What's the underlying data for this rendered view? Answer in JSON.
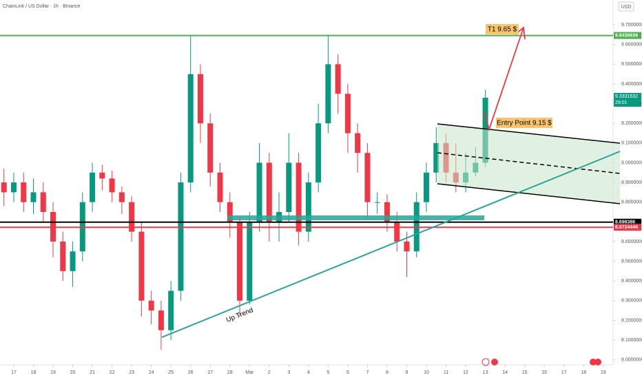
{
  "chart_data": {
    "type": "candlestick",
    "title": "ChainLink / US Dollar · 1h · Binance",
    "currency": "USD",
    "up_color": "#089981",
    "down_color": "#f23645",
    "x": [
      -0.5,
      0,
      0.5,
      1,
      1.5,
      2,
      2.5,
      3,
      3.5,
      4,
      4.5,
      5,
      5.5,
      6,
      6.5,
      7,
      7.5,
      8,
      8.5,
      9,
      9.5,
      10,
      10.5,
      11,
      11.5,
      12,
      12.5,
      13,
      13.5,
      14,
      14.5,
      15,
      15.5,
      16,
      16.5,
      17,
      17.5,
      18,
      18.5,
      19,
      19.5,
      20,
      20.5,
      21,
      21.5,
      22,
      22.5,
      23,
      23.5,
      24
    ],
    "open": [
      8.9,
      8.85,
      8.9,
      8.8,
      8.85,
      8.75,
      8.6,
      8.45,
      8.55,
      8.8,
      8.95,
      8.92,
      8.85,
      8.8,
      8.65,
      8.3,
      8.25,
      8.15,
      8.35,
      8.9,
      9.45,
      9.2,
      8.95,
      8.8,
      8.7,
      8.3,
      8.7,
      9.0,
      8.7,
      8.75,
      9.0,
      8.65,
      8.9,
      9.2,
      9.5,
      9.35,
      9.15,
      9.05,
      8.8,
      8.8,
      8.7,
      8.6,
      8.55,
      8.8,
      8.95,
      9.1,
      8.95,
      8.9,
      8.95,
      9.0
    ],
    "high": [
      8.97,
      8.95,
      8.95,
      8.92,
      8.9,
      8.8,
      8.65,
      8.6,
      8.85,
      9.0,
      8.99,
      8.96,
      8.88,
      8.83,
      8.7,
      8.35,
      8.3,
      8.4,
      8.95,
      9.65,
      9.5,
      9.25,
      9.0,
      8.85,
      8.72,
      8.75,
      9.1,
      9.05,
      8.85,
      9.15,
      9.05,
      8.95,
      9.3,
      9.65,
      9.55,
      9.4,
      9.2,
      9.1,
      8.85,
      8.84,
      8.75,
      8.65,
      8.85,
      9.0,
      9.18,
      9.15,
      9.1,
      9.05,
      9.08,
      9.37
    ],
    "low": [
      8.78,
      8.8,
      8.75,
      8.74,
      8.7,
      8.52,
      8.4,
      8.37,
      8.5,
      8.75,
      8.86,
      8.8,
      8.74,
      8.6,
      8.22,
      8.18,
      8.05,
      8.1,
      8.3,
      8.85,
      9.1,
      8.88,
      8.75,
      8.62,
      8.22,
      8.28,
      8.65,
      8.6,
      8.6,
      8.7,
      8.58,
      8.6,
      8.85,
      9.15,
      9.25,
      9.05,
      8.95,
      8.72,
      8.74,
      8.65,
      8.55,
      8.42,
      8.52,
      8.75,
      8.9,
      8.9,
      8.85,
      8.85,
      8.93,
      8.98
    ],
    "close": [
      8.85,
      8.9,
      8.8,
      8.85,
      8.75,
      8.6,
      8.45,
      8.55,
      8.8,
      8.95,
      8.92,
      8.85,
      8.8,
      8.65,
      8.3,
      8.25,
      8.15,
      8.35,
      8.9,
      9.45,
      9.2,
      8.95,
      8.8,
      8.7,
      8.3,
      8.7,
      9.0,
      8.7,
      8.75,
      9.0,
      8.65,
      8.9,
      9.2,
      9.5,
      9.35,
      9.15,
      9.05,
      8.8,
      8.8,
      8.7,
      8.6,
      8.55,
      8.8,
      8.95,
      9.1,
      8.95,
      8.9,
      8.95,
      9.0,
      9.33
    ],
    "xlim": [
      -0.7,
      30.5
    ],
    "xticks": [
      {
        "value": 0,
        "label": "17"
      },
      {
        "value": 1,
        "label": "18"
      },
      {
        "value": 2,
        "label": "19"
      },
      {
        "value": 3,
        "label": "20"
      },
      {
        "value": 4,
        "label": "21"
      },
      {
        "value": 5,
        "label": "22"
      },
      {
        "value": 6,
        "label": "23"
      },
      {
        "value": 7,
        "label": "24"
      },
      {
        "value": 8,
        "label": "25"
      },
      {
        "value": 9,
        "label": "26"
      },
      {
        "value": 10,
        "label": "27"
      },
      {
        "value": 11,
        "label": "28"
      },
      {
        "value": 12,
        "label": "Mar"
      },
      {
        "value": 13,
        "label": "2"
      },
      {
        "value": 14,
        "label": "3"
      },
      {
        "value": 15,
        "label": "4"
      },
      {
        "value": 16,
        "label": "5"
      },
      {
        "value": 17,
        "label": "6"
      },
      {
        "value": 18,
        "label": "7"
      },
      {
        "value": 19,
        "label": "8"
      },
      {
        "value": 20,
        "label": "9"
      },
      {
        "value": 21,
        "label": "10"
      },
      {
        "value": 22,
        "label": "11"
      },
      {
        "value": 23,
        "label": "12"
      },
      {
        "value": 24,
        "label": "13"
      },
      {
        "value": 25,
        "label": "14"
      },
      {
        "value": 26,
        "label": "15"
      },
      {
        "value": 27,
        "label": "16"
      },
      {
        "value": 28,
        "label": "17"
      },
      {
        "value": 29,
        "label": "18"
      },
      {
        "value": 30,
        "label": "19"
      }
    ],
    "ylim": [
      7.9745,
      9.826
    ],
    "yticks": [
      {
        "value": 9.7,
        "label": "9.7000000"
      },
      {
        "value": 9.6,
        "label": "9.6000000"
      },
      {
        "value": 9.5,
        "label": "9.5000000"
      },
      {
        "value": 9.4,
        "label": "9.4000000"
      },
      {
        "value": 9.3,
        "label": "9.3000000"
      },
      {
        "value": 9.2,
        "label": "9.2000000"
      },
      {
        "value": 9.1,
        "label": "9.1000000"
      },
      {
        "value": 9.0,
        "label": "9.0000000"
      },
      {
        "value": 8.9,
        "label": "8.9000000"
      },
      {
        "value": 8.8,
        "label": "8.8000000"
      },
      {
        "value": 8.7,
        "label": "8.7000000"
      },
      {
        "value": 8.6,
        "label": "8.6000000"
      },
      {
        "value": 8.5,
        "label": "8.5000000"
      },
      {
        "value": 8.4,
        "label": "8.4000000"
      },
      {
        "value": 8.3,
        "label": "8.3000000"
      },
      {
        "value": 8.2,
        "label": "8.2000000"
      },
      {
        "value": 8.1,
        "label": "8.1000000"
      },
      {
        "value": 8.0,
        "label": "8.0000000"
      }
    ],
    "levels": [
      {
        "value": 9.6458636,
        "color": "#4caf50"
      },
      {
        "value": 8.698386,
        "color": "#000000"
      },
      {
        "value": 8.6724446,
        "color": "#f23645"
      }
    ],
    "last_price": {
      "value": 9.3331632,
      "countdown": "29:01",
      "color": "#089981"
    },
    "annotations": {
      "target": "T1  9.65 $",
      "entry": "Entry  Point 9.15 $",
      "trend": "Up Trend"
    }
  }
}
